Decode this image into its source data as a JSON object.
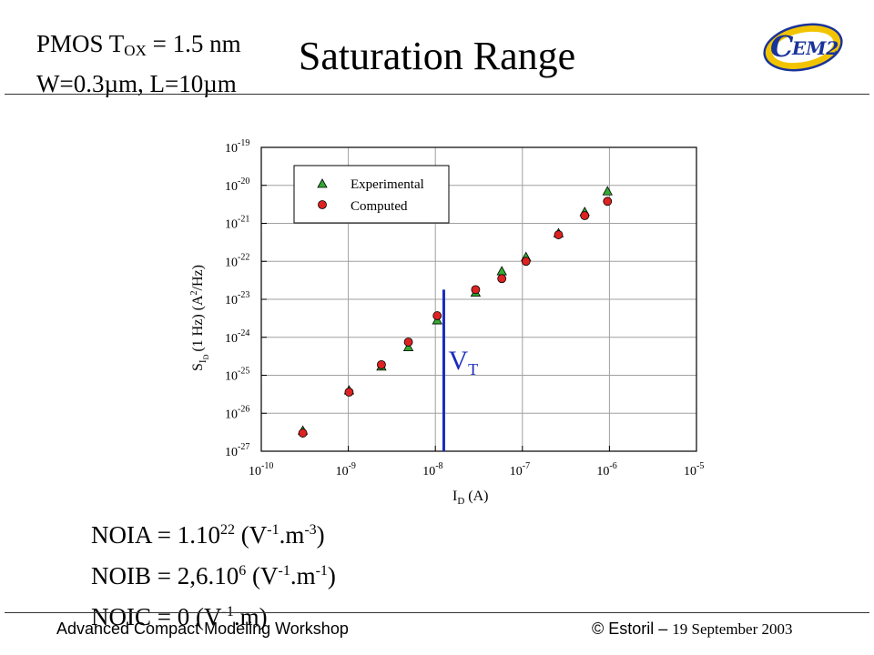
{
  "header": {
    "device_prefix": "PMOS T",
    "device_sub": "OX",
    "device_suffix": " = 1.5 nm",
    "geometry": "W=0.3µm, L=10µm",
    "title": "Saturation Range",
    "logo_text": "EM2",
    "logo_letter": "C"
  },
  "params": [
    {
      "prefix": "NOIA = 1.10",
      "exp": "22",
      "unit_open": "  (V",
      "unit_exp1": "-1",
      "unit_mid": ".m",
      "unit_exp2": "-3",
      "unit_close": ")"
    },
    {
      "prefix": "NOIB = 2,6.10",
      "exp": "6",
      "unit_open": "  (V",
      "unit_exp1": "-1",
      "unit_mid": ".m",
      "unit_exp2": "-1",
      "unit_close": ")"
    },
    {
      "prefix": "NOIC = 0 ",
      "exp": "",
      "unit_open": "(V",
      "unit_exp1": "-1",
      "unit_mid": ".m)",
      "unit_exp2": "",
      "unit_close": ""
    }
  ],
  "footer": {
    "left": "Advanced Compact Modeling Workshop",
    "right_prefix": "© Estoril – ",
    "right_date": "19 September 2003"
  },
  "colors": {
    "experimental_fill": "#33aa33",
    "computed_fill": "#dd2222",
    "vt_line": "#1a2bbf",
    "grid": "#a0a0a0"
  },
  "chart_data": {
    "type": "scatter",
    "x_scale": "log",
    "y_scale": "log",
    "xlim": [
      1e-10,
      1e-05
    ],
    "ylim": [
      1e-27,
      1e-19
    ],
    "xlabel_main": "I",
    "xlabel_sub": "D",
    "xlabel_unit": " (A)",
    "ylabel_main": "S",
    "ylabel_sub": "I",
    "ylabel_subsub": "D",
    "ylabel_unit": "(1 Hz) (A",
    "ylabel_unit_exp": "2",
    "ylabel_unit_tail": "/Hz)",
    "x_ticks": [
      {
        "mant": "10",
        "exp": "-10"
      },
      {
        "mant": "10",
        "exp": "-9"
      },
      {
        "mant": "10",
        "exp": "-8"
      },
      {
        "mant": "10",
        "exp": "-7"
      },
      {
        "mant": "10",
        "exp": "-6"
      },
      {
        "mant": "10",
        "exp": "-5"
      }
    ],
    "y_ticks": [
      {
        "mant": "10",
        "exp": "-27"
      },
      {
        "mant": "10",
        "exp": "-26"
      },
      {
        "mant": "10",
        "exp": "-25"
      },
      {
        "mant": "10",
        "exp": "-24"
      },
      {
        "mant": "10",
        "exp": "-23"
      },
      {
        "mant": "10",
        "exp": "-22"
      },
      {
        "mant": "10",
        "exp": "-21"
      },
      {
        "mant": "10",
        "exp": "-20"
      },
      {
        "mant": "10",
        "exp": "-19"
      }
    ],
    "grid": true,
    "legend_position": "top-left",
    "series": [
      {
        "name": "Experimental",
        "marker": "triangle",
        "x": [
          3e-10,
          1.02e-09,
          2.4e-09,
          4.9e-09,
          1.05e-08,
          2.9e-08,
          5.8e-08,
          1.1e-07,
          2.6e-07,
          5.2e-07,
          9.5e-07
        ],
        "y": [
          3.5e-27,
          4e-26,
          1.7e-25,
          5.5e-25,
          2.8e-24,
          1.5e-23,
          5.5e-23,
          1.3e-22,
          5.5e-22,
          2e-21,
          7e-21
        ]
      },
      {
        "name": "Computed",
        "marker": "circle",
        "x": [
          3e-10,
          1.02e-09,
          2.4e-09,
          4.9e-09,
          1.05e-08,
          2.9e-08,
          5.8e-08,
          1.1e-07,
          2.6e-07,
          5.2e-07,
          9.5e-07
        ],
        "y": [
          3e-27,
          3.6e-26,
          1.9e-25,
          7.5e-25,
          3.7e-24,
          1.8e-23,
          3.5e-23,
          1e-22,
          5e-22,
          1.6e-21,
          3.8e-21
        ]
      }
    ],
    "vt_marker": {
      "label_main": "V",
      "label_sub": "T",
      "x": 1.25e-08,
      "y_range": [
        1e-27,
        1.8e-23
      ]
    }
  }
}
